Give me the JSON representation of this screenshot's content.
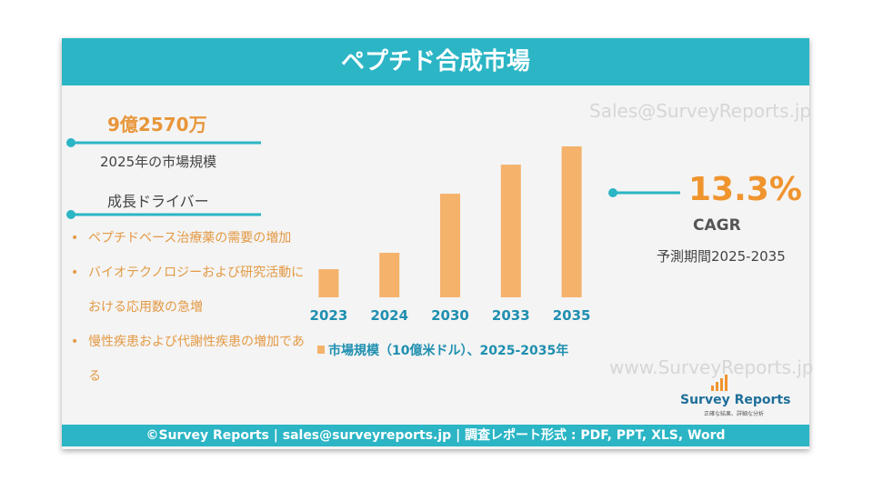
{
  "header": {
    "title": "ペプチド合成市場"
  },
  "watermark_top": "Sales@SurveyReports.jp",
  "watermark_bottom": "www.SurveyReports.jp",
  "market_size": {
    "value": "9億2570万",
    "label": "2025年の市場規模"
  },
  "drivers": {
    "title": "成長ドライバー",
    "items": [
      "ペプチドベース治療薬の需要の増加",
      "バイオテクノロジーおよび研究活動における応用数の急増",
      "慢性疾患および代謝性疾患の増加である"
    ]
  },
  "cagr": {
    "value": "13.3%",
    "label": "CAGR",
    "period": "予測期間2025-2035"
  },
  "chart_data": {
    "type": "bar",
    "categories": [
      "2023",
      "2024",
      "2030",
      "2033",
      "2035"
    ],
    "series": [
      {
        "name": "市場規模（10億米ドル）、2025-2035年",
        "color": "#f5b26b",
        "values": [
          0.6,
          0.95,
          2.21,
          2.83,
          3.22
        ]
      }
    ]
  },
  "logo": {
    "name": "Survey Reports",
    "tagline": "正確な結果、詳細な分析"
  },
  "footer": {
    "text": "©Survey Reports | sales@surveyreports.jp |  調査レポート形式 : PDF, PPT, XLS, Word"
  }
}
